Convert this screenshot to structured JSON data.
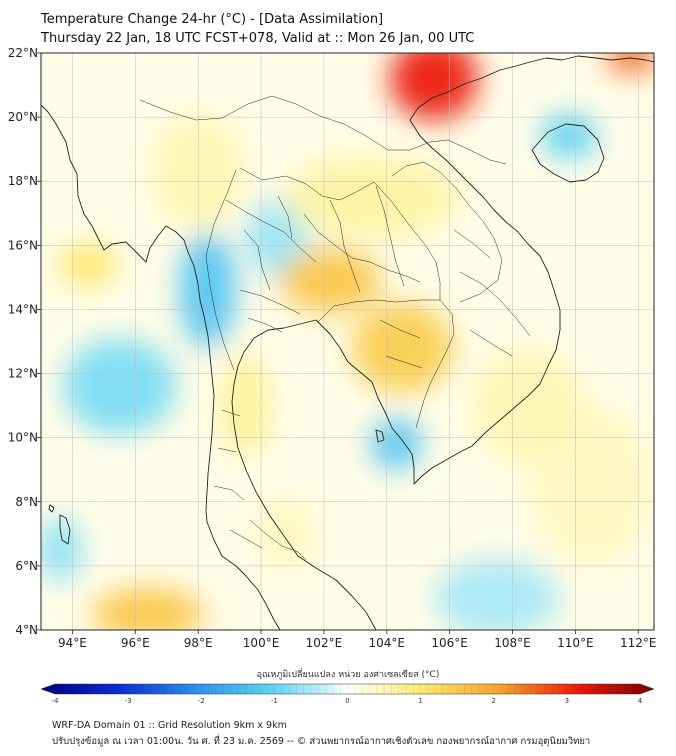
{
  "title": {
    "line1": "Temperature Change 24-hr (°C) - [Data Assimilation]",
    "line2": "Thursday 22 Jan, 18 UTC FCST+078, Valid at :: Mon 26 Jan, 00 UTC"
  },
  "map": {
    "lon_range": [
      93,
      112.5
    ],
    "lat_range": [
      4,
      22
    ],
    "x_ticks": [
      {
        "value": 94,
        "label": "94°E"
      },
      {
        "value": 96,
        "label": "96°E"
      },
      {
        "value": 98,
        "label": "98°E"
      },
      {
        "value": 100,
        "label": "100°E"
      },
      {
        "value": 102,
        "label": "102°E"
      },
      {
        "value": 104,
        "label": "104°E"
      },
      {
        "value": 106,
        "label": "106°E"
      },
      {
        "value": 108,
        "label": "108°E"
      },
      {
        "value": 110,
        "label": "110°E"
      },
      {
        "value": 112,
        "label": "112°E"
      }
    ],
    "y_ticks": [
      {
        "value": 4,
        "label": "4°N"
      },
      {
        "value": 6,
        "label": "6°N"
      },
      {
        "value": 8,
        "label": "8°N"
      },
      {
        "value": 10,
        "label": "10°N"
      },
      {
        "value": 12,
        "label": "12°N"
      },
      {
        "value": 14,
        "label": "14°N"
      },
      {
        "value": 16,
        "label": "16°N"
      },
      {
        "value": 18,
        "label": "18°N"
      },
      {
        "value": 20,
        "label": "20°N"
      },
      {
        "value": 22,
        "label": "22°N"
      }
    ],
    "gridlines": true,
    "field_blobs": [
      {
        "lon": 105.5,
        "lat": 21.2,
        "value": 3.0,
        "rx_deg": 1.4,
        "ry_deg": 1.3
      },
      {
        "lon": 111.8,
        "lat": 21.9,
        "value": 2.5,
        "rx_deg": 0.8,
        "ry_deg": 0.5
      },
      {
        "lon": 102.2,
        "lat": 14.9,
        "value": 1.5,
        "rx_deg": 1.6,
        "ry_deg": 1.0
      },
      {
        "lon": 104.5,
        "lat": 12.8,
        "value": 1.4,
        "rx_deg": 1.6,
        "ry_deg": 1.4
      },
      {
        "lon": 96.4,
        "lat": 4.5,
        "value": 1.5,
        "rx_deg": 1.8,
        "ry_deg": 0.8
      },
      {
        "lon": 94.5,
        "lat": 15.4,
        "value": 1.0,
        "rx_deg": 0.9,
        "ry_deg": 0.7
      },
      {
        "lon": 98.3,
        "lat": 14.6,
        "value": -1.2,
        "rx_deg": 0.9,
        "ry_deg": 1.8
      },
      {
        "lon": 104.3,
        "lat": 9.8,
        "value": -1.2,
        "rx_deg": 0.8,
        "ry_deg": 0.8
      },
      {
        "lon": 109.8,
        "lat": 19.4,
        "value": -1.0,
        "rx_deg": 0.9,
        "ry_deg": 0.7
      },
      {
        "lon": 95.5,
        "lat": 11.6,
        "value": -0.8,
        "rx_deg": 1.8,
        "ry_deg": 1.5
      },
      {
        "lon": 100.5,
        "lat": 16.2,
        "value": -0.6,
        "rx_deg": 1.0,
        "ry_deg": 1.2
      },
      {
        "lon": 103.5,
        "lat": 17.5,
        "value": 0.6,
        "rx_deg": 2.8,
        "ry_deg": 1.3
      },
      {
        "lon": 98.0,
        "lat": 18.3,
        "value": 0.5,
        "rx_deg": 1.5,
        "ry_deg": 1.8
      },
      {
        "lon": 99.5,
        "lat": 11.0,
        "value": 0.7,
        "rx_deg": 0.8,
        "ry_deg": 1.6
      },
      {
        "lon": 108.5,
        "lat": 11.0,
        "value": 0.5,
        "rx_deg": 1.8,
        "ry_deg": 1.8
      },
      {
        "lon": 110.5,
        "lat": 8.5,
        "value": 0.4,
        "rx_deg": 2.0,
        "ry_deg": 2.5
      },
      {
        "lon": 100.8,
        "lat": 7.0,
        "value": 0.4,
        "rx_deg": 1.0,
        "ry_deg": 1.2
      },
      {
        "lon": 107.5,
        "lat": 5.0,
        "value": -0.5,
        "rx_deg": 2.0,
        "ry_deg": 1.2
      },
      {
        "lon": 93.6,
        "lat": 6.5,
        "value": -0.7,
        "rx_deg": 0.7,
        "ry_deg": 1.0
      }
    ]
  },
  "colorbar": {
    "title": "อุณหภูมิเปลี่ยนแปลง หน่วย องศาเซลเซียส (°C)",
    "min": -4,
    "max": 4,
    "ticks": [
      {
        "value": -4,
        "label": "-4"
      },
      {
        "value": -3,
        "label": "-3"
      },
      {
        "value": -2,
        "label": "-2"
      },
      {
        "value": -1,
        "label": "-1"
      },
      {
        "value": 0,
        "label": "0"
      },
      {
        "value": 1,
        "label": "1"
      },
      {
        "value": 2,
        "label": "2"
      },
      {
        "value": 3,
        "label": "3"
      },
      {
        "value": 4,
        "label": "4"
      }
    ],
    "color_stops": [
      {
        "value": -4.0,
        "color": "#00007f"
      },
      {
        "value": -3.0,
        "color": "#0a2bd6"
      },
      {
        "value": -2.0,
        "color": "#2b8fec"
      },
      {
        "value": -1.0,
        "color": "#5fd3f2"
      },
      {
        "value": -0.3,
        "color": "#c6f1f9"
      },
      {
        "value": 0.0,
        "color": "#ffffff"
      },
      {
        "value": 0.3,
        "color": "#fffbd0"
      },
      {
        "value": 1.0,
        "color": "#fbe96a"
      },
      {
        "value": 2.0,
        "color": "#f6a32a"
      },
      {
        "value": 3.0,
        "color": "#ec1a08"
      },
      {
        "value": 4.0,
        "color": "#7a0000"
      }
    ]
  },
  "footer": {
    "line1": "WRF-DA Domain 01 :: Grid Resolution 9km x 9km",
    "line2": "ปรับปรุงข้อมูล ณ เวลา 01:00น. วัน ศ. ที่ 23 ม.ค. 2569 -- © ส่วนพยากรณ์อากาศเชิงตัวเลข กองพยากรณ์อากาศ กรมอุตุนิยมวิทยา"
  }
}
